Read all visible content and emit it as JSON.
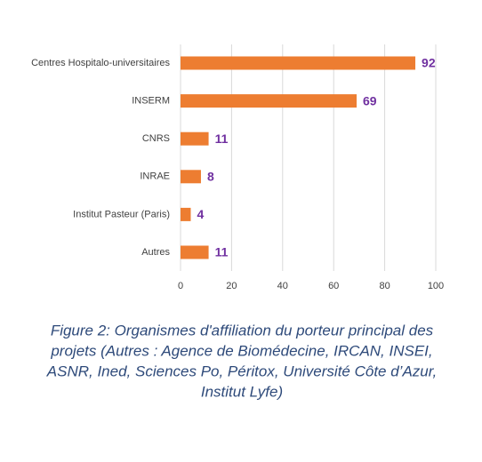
{
  "chart_data": {
    "type": "bar",
    "orientation": "horizontal",
    "categories": [
      "Centres Hospitalo-universitaires",
      "INSERM",
      "CNRS",
      "INRAE",
      "Institut Pasteur (Paris)",
      "Autres"
    ],
    "values": [
      92,
      69,
      11,
      8,
      4,
      11
    ],
    "color": "#ed7d31",
    "value_label_color": "#7030a0",
    "xlim": [
      0,
      100
    ],
    "xticks": [
      0,
      20,
      40,
      60,
      80,
      100
    ],
    "grid": true
  },
  "caption": [
    "Figure 2: Organismes d'affiliation du porteur principal des",
    "projets (Autres : Agence de Biomédecine, IRCAN, INSEI,",
    "ASNR, Ined, Sciences Po, Péritox, Université Côte d’Azur,",
    "Institut Lyfe)"
  ]
}
